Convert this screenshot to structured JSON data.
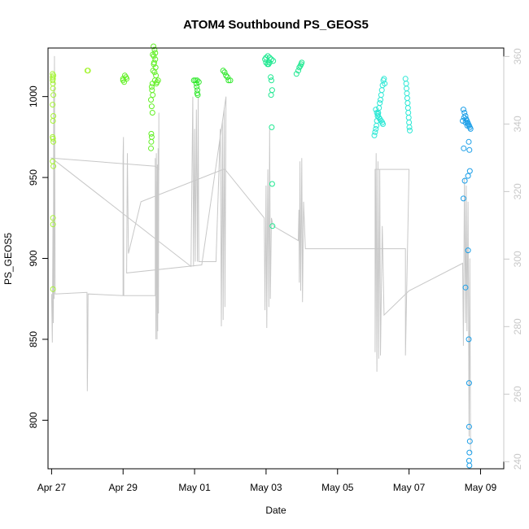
{
  "chart_data": {
    "type": "scatter",
    "title": "ATOM4 Southbound PS_GEOS5",
    "xlabel": "Date",
    "ylabel": "PS_GEOS5",
    "xlim": [
      -0.1,
      12.65
    ],
    "ylim": [
      770,
      1030
    ],
    "y2lim": [
      237.9,
      362.5
    ],
    "x_ticks": [
      {
        "value": 0,
        "label": "Apr 27"
      },
      {
        "value": 2,
        "label": "Apr 29"
      },
      {
        "value": 4,
        "label": "May 01"
      },
      {
        "value": 6,
        "label": "May 03"
      },
      {
        "value": 8,
        "label": "May 05"
      },
      {
        "value": 10,
        "label": "May 07"
      },
      {
        "value": 12,
        "label": "May 09"
      }
    ],
    "y_ticks": [
      800,
      850,
      900,
      950,
      1000
    ],
    "y2_ticks": [
      240,
      260,
      280,
      300,
      320,
      340,
      360
    ],
    "grid": false,
    "right_axis_color": "#c8c8c8",
    "series": [
      {
        "color": "#a6f535",
        "points": [
          [
            0.03,
            1014
          ],
          [
            0.03,
            1012
          ],
          [
            0.04,
            1011
          ],
          [
            0.05,
            1013
          ],
          [
            0.03,
            1010
          ],
          [
            0.04,
            1008
          ],
          [
            0.04,
            1005
          ],
          [
            0.05,
            1001
          ],
          [
            0.03,
            995
          ],
          [
            0.05,
            988
          ],
          [
            0.04,
            985
          ],
          [
            0.03,
            975
          ],
          [
            0.05,
            972
          ],
          [
            0.04,
            974
          ],
          [
            0.03,
            960
          ],
          [
            0.05,
            957
          ],
          [
            0.04,
            925
          ],
          [
            0.04,
            921
          ],
          [
            0.04,
            881
          ],
          [
            1.0,
            1016
          ],
          [
            1.02,
            1016
          ]
        ]
      },
      {
        "color": "#62f025",
        "points": [
          [
            2.05,
            1013
          ],
          [
            2.08,
            1012
          ],
          [
            2.1,
            1011
          ],
          [
            2.0,
            1010
          ],
          [
            2.03,
            1009
          ],
          [
            2.0,
            1011
          ],
          [
            2.85,
            1031
          ],
          [
            2.88,
            1029
          ],
          [
            2.9,
            1027
          ],
          [
            2.86,
            1025
          ],
          [
            2.9,
            1023
          ],
          [
            2.87,
            1021
          ],
          [
            2.91,
            1018
          ],
          [
            2.88,
            1015
          ],
          [
            2.92,
            1013
          ],
          [
            2.89,
            1010
          ],
          [
            2.93,
            1008
          ],
          [
            2.95,
            1009
          ],
          [
            2.98,
            1010
          ],
          [
            2.82,
            1008
          ],
          [
            2.8,
            1006
          ],
          [
            2.81,
            1004
          ],
          [
            2.83,
            1001
          ],
          [
            2.78,
            998
          ],
          [
            2.8,
            994
          ],
          [
            2.82,
            990
          ],
          [
            2.79,
            977
          ],
          [
            2.8,
            975
          ],
          [
            2.79,
            972
          ],
          [
            2.78,
            968
          ],
          [
            2.83,
            1026
          ],
          [
            2.86,
            1020
          ],
          [
            2.84,
            1016
          ]
        ]
      },
      {
        "color": "#2ee82a",
        "points": [
          [
            3.98,
            1010
          ],
          [
            4.02,
            1010
          ],
          [
            4.07,
            1010
          ],
          [
            4.12,
            1009
          ],
          [
            4.05,
            1008
          ],
          [
            4.06,
            1006
          ],
          [
            4.08,
            1004
          ],
          [
            4.07,
            1002
          ],
          [
            4.09,
            1001
          ],
          [
            4.8,
            1016
          ],
          [
            4.84,
            1015
          ],
          [
            4.88,
            1013
          ],
          [
            4.92,
            1012
          ],
          [
            4.95,
            1010
          ],
          [
            5.0,
            1010
          ]
        ]
      },
      {
        "color": "#1de890",
        "points": [
          [
            5.97,
            1023
          ],
          [
            6.0,
            1024
          ],
          [
            6.05,
            1025
          ],
          [
            6.1,
            1024
          ],
          [
            6.15,
            1023
          ],
          [
            6.2,
            1022
          ],
          [
            6.0,
            1021
          ],
          [
            6.04,
            1020
          ],
          [
            6.07,
            1020
          ],
          [
            6.1,
            1021
          ],
          [
            6.13,
            1012
          ],
          [
            6.15,
            1010
          ],
          [
            6.17,
            1004
          ],
          [
            6.14,
            1001
          ],
          [
            6.16,
            981
          ],
          [
            6.17,
            946
          ],
          [
            6.18,
            920
          ],
          [
            6.85,
            1014
          ],
          [
            6.9,
            1016
          ],
          [
            6.93,
            1018
          ],
          [
            6.96,
            1019
          ],
          [
            6.98,
            1020
          ],
          [
            7.0,
            1021
          ]
        ]
      },
      {
        "color": "#2ce8d5",
        "points": [
          [
            9.03,
            976
          ],
          [
            9.05,
            978
          ],
          [
            9.07,
            980
          ],
          [
            9.09,
            982
          ],
          [
            9.1,
            985
          ],
          [
            9.12,
            988
          ],
          [
            9.14,
            990
          ],
          [
            9.16,
            993
          ],
          [
            9.18,
            996
          ],
          [
            9.2,
            998
          ],
          [
            9.22,
            1001
          ],
          [
            9.24,
            1004
          ],
          [
            9.26,
            1007
          ],
          [
            9.28,
            1010
          ],
          [
            9.3,
            1011
          ],
          [
            9.32,
            1008
          ],
          [
            9.07,
            992
          ],
          [
            9.1,
            990
          ],
          [
            9.13,
            989
          ],
          [
            9.16,
            987
          ],
          [
            9.19,
            986
          ],
          [
            9.22,
            985
          ],
          [
            9.25,
            984
          ],
          [
            9.27,
            983
          ],
          [
            9.9,
            1011
          ],
          [
            9.92,
            1008
          ],
          [
            9.93,
            1005
          ],
          [
            9.94,
            1002
          ],
          [
            9.95,
            999
          ],
          [
            9.96,
            996
          ],
          [
            9.97,
            993
          ],
          [
            9.98,
            990
          ],
          [
            9.99,
            987
          ],
          [
            10.0,
            984
          ],
          [
            10.01,
            981
          ],
          [
            10.02,
            979
          ]
        ]
      },
      {
        "color": "#1a9ee8",
        "points": [
          [
            11.52,
            992
          ],
          [
            11.55,
            990
          ],
          [
            11.58,
            988
          ],
          [
            11.6,
            986
          ],
          [
            11.62,
            985
          ],
          [
            11.64,
            984
          ],
          [
            11.66,
            983
          ],
          [
            11.68,
            982
          ],
          [
            11.7,
            981
          ],
          [
            11.72,
            980
          ],
          [
            11.5,
            985
          ],
          [
            11.54,
            987
          ],
          [
            11.58,
            984
          ],
          [
            11.63,
            982
          ],
          [
            11.67,
            972
          ],
          [
            11.69,
            967
          ],
          [
            11.53,
            968
          ],
          [
            11.56,
            948
          ],
          [
            11.65,
            951
          ],
          [
            11.7,
            954
          ],
          [
            11.52,
            937
          ],
          [
            11.58,
            882
          ],
          [
            11.65,
            905
          ],
          [
            11.67,
            850
          ],
          [
            11.68,
            823
          ],
          [
            11.68,
            796
          ],
          [
            11.7,
            787
          ],
          [
            11.69,
            780
          ],
          [
            11.68,
            775
          ],
          [
            11.69,
            772
          ]
        ]
      }
    ],
    "gray_trace": {
      "color": "#c8c8c8",
      "points": [
        [
          0,
          878
        ],
        [
          0.02,
          848
        ],
        [
          0.04,
          925
        ],
        [
          0.05,
          860
        ],
        [
          0.06,
          1005
        ],
        [
          0.07,
          875
        ],
        [
          0.08,
          1025
        ],
        [
          0.1,
          878
        ],
        [
          0.99,
          879
        ],
        [
          1.0,
          818
        ],
        [
          1.01,
          840
        ],
        [
          1.02,
          878
        ],
        [
          2.0,
          877
        ],
        [
          2.0,
          963
        ],
        [
          2.01,
          975
        ],
        [
          2.02,
          877
        ],
        [
          2.9,
          877
        ],
        [
          2.9,
          962
        ],
        [
          2.92,
          850
        ],
        [
          2.93,
          965
        ],
        [
          2.95,
          850
        ],
        [
          2.96,
          958
        ],
        [
          2.97,
          855
        ],
        [
          2.98,
          968
        ],
        [
          2.99,
          866
        ],
        [
          3.0,
          990
        ],
        [
          3.0,
          955
        ],
        [
          2.9,
          957
        ],
        [
          0,
          962
        ],
        [
          3.9,
          895
        ],
        [
          3.95,
          1000
        ],
        [
          3.97,
          895
        ],
        [
          4.0,
          980
        ],
        [
          4.02,
          898
        ],
        [
          4.05,
          992
        ],
        [
          4.08,
          898
        ],
        [
          4.1,
          1000
        ],
        [
          4.12,
          898
        ],
        [
          4.6,
          898
        ],
        [
          4.72,
          980
        ],
        [
          4.75,
          858
        ],
        [
          4.78,
          985
        ],
        [
          4.8,
          862
        ],
        [
          4.83,
          993
        ],
        [
          4.85,
          870
        ],
        [
          4.88,
          1000
        ],
        [
          4.2,
          896
        ],
        [
          2.1,
          891
        ],
        [
          2.12,
          965
        ],
        [
          2.15,
          903
        ],
        [
          2.5,
          935
        ],
        [
          4.8,
          955
        ],
        [
          4.85,
          955
        ],
        [
          5.95,
          925
        ],
        [
          5.97,
          868
        ],
        [
          6.0,
          945
        ],
        [
          6.02,
          857
        ],
        [
          6.05,
          955
        ],
        [
          6.08,
          870
        ],
        [
          6.1,
          980
        ],
        [
          6.12,
          875
        ],
        [
          6.15,
          925
        ],
        [
          6.2,
          920
        ],
        [
          6.9,
          911
        ],
        [
          6.92,
          930
        ],
        [
          6.93,
          885
        ],
        [
          6.95,
          960
        ],
        [
          6.97,
          880
        ],
        [
          7.0,
          962
        ],
        [
          7.02,
          873
        ],
        [
          7.05,
          935
        ],
        [
          7.1,
          906
        ],
        [
          9.9,
          906
        ],
        [
          9.9,
          840
        ],
        [
          10.0,
          955
        ],
        [
          9.05,
          955
        ],
        [
          9.05,
          842
        ],
        [
          9.08,
          965
        ],
        [
          9.1,
          830
        ],
        [
          9.13,
          960
        ],
        [
          9.15,
          838
        ],
        [
          9.18,
          955
        ],
        [
          9.2,
          840
        ],
        [
          9.25,
          920
        ],
        [
          9.3,
          865
        ],
        [
          10.0,
          880
        ],
        [
          11.5,
          897
        ],
        [
          11.52,
          846
        ],
        [
          11.55,
          950
        ],
        [
          11.58,
          860
        ],
        [
          11.6,
          945
        ],
        [
          11.62,
          855
        ],
        [
          11.65,
          935
        ],
        [
          11.68,
          790
        ],
        [
          11.7,
          900
        ],
        [
          11.72,
          780
        ]
      ]
    }
  }
}
